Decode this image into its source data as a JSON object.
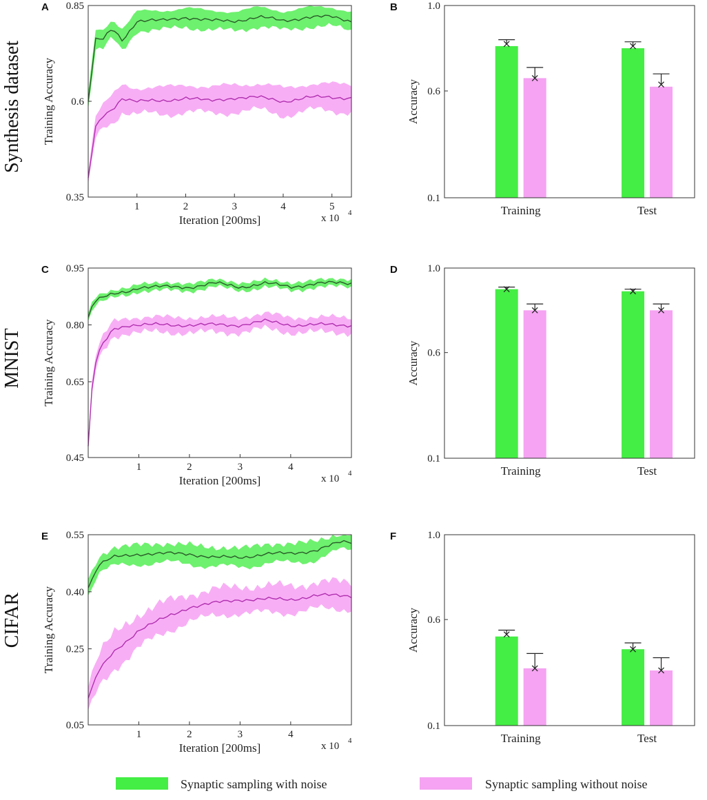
{
  "figure": {
    "row_labels": [
      "Synthesis dataset",
      "MNIST",
      "CIFAR"
    ],
    "legend": [
      {
        "label": "Synaptic sampling with noise",
        "color": "#44ee44"
      },
      {
        "label": "Synaptic sampling without noise",
        "color": "#f5a3f2"
      }
    ]
  },
  "colors": {
    "noise_band": "#55ee55",
    "noise_line": "#2a5a2a",
    "nonoise_band": "#f7a0f3",
    "nonoise_line": "#b030b0",
    "bar_noise": "#44ee44",
    "bar_nonoise": "#f5a3f2"
  },
  "chart_data": [
    {
      "panel": "A",
      "type": "line",
      "xlabel": "Iteration [200ms]",
      "ylabel": "Training Accuracy",
      "x_multiplier": "x 10",
      "x_exponent": "4",
      "xlim": [
        0,
        5.4
      ],
      "ylim": [
        0.35,
        0.85
      ],
      "xticks": [
        1,
        2,
        3,
        4,
        5
      ],
      "yticks": [
        0.35,
        0.6,
        0.85
      ],
      "ytick_labels": [
        "0.35",
        "0.6",
        "0.85"
      ],
      "series": [
        {
          "name": "Synaptic sampling with noise",
          "x": [
            0,
            0.15,
            0.3,
            0.5,
            0.7,
            1.0,
            1.5,
            2.0,
            2.5,
            3.0,
            3.5,
            4.0,
            4.5,
            5.0,
            5.4
          ],
          "mean": [
            0.6,
            0.76,
            0.76,
            0.79,
            0.76,
            0.81,
            0.81,
            0.82,
            0.81,
            0.81,
            0.82,
            0.81,
            0.82,
            0.82,
            0.81
          ],
          "spread": [
            0.02,
            0.025,
            0.025,
            0.025,
            0.03,
            0.025,
            0.025,
            0.025,
            0.025,
            0.025,
            0.025,
            0.025,
            0.025,
            0.025,
            0.025
          ]
        },
        {
          "name": "Synaptic sampling without noise",
          "x": [
            0,
            0.15,
            0.3,
            0.5,
            0.7,
            1.0,
            1.5,
            2.0,
            2.5,
            3.0,
            3.5,
            4.0,
            4.5,
            5.0,
            5.4
          ],
          "mean": [
            0.4,
            0.53,
            0.56,
            0.58,
            0.61,
            0.6,
            0.6,
            0.61,
            0.6,
            0.61,
            0.61,
            0.6,
            0.61,
            0.61,
            0.61
          ],
          "spread": [
            0.02,
            0.03,
            0.03,
            0.035,
            0.035,
            0.035,
            0.035,
            0.035,
            0.035,
            0.035,
            0.035,
            0.035,
            0.035,
            0.035,
            0.035
          ]
        }
      ]
    },
    {
      "panel": "B",
      "type": "bar",
      "ylabel": "Accuracy",
      "ylim": [
        0.1,
        1.0
      ],
      "yticks": [
        0.1,
        0.6,
        1.0
      ],
      "ytick_labels": [
        "0.1",
        "0.6",
        "1.0"
      ],
      "categories": [
        "Training",
        "Test"
      ],
      "series": [
        {
          "name": "Synaptic sampling with noise",
          "values": [
            0.81,
            0.8
          ],
          "markers": [
            0.82,
            0.81
          ],
          "err_top": [
            0.84,
            0.83
          ]
        },
        {
          "name": "Synaptic sampling without noise",
          "values": [
            0.66,
            0.62
          ],
          "markers": [
            0.66,
            0.63
          ],
          "err_top": [
            0.71,
            0.68
          ]
        }
      ]
    },
    {
      "panel": "C",
      "type": "line",
      "xlabel": "Iteration [200ms]",
      "ylabel": "Training Accuracy",
      "x_multiplier": "x 10",
      "x_exponent": "4",
      "xlim": [
        0,
        5.2
      ],
      "ylim": [
        0.45,
        0.95
      ],
      "xticks": [
        1,
        2,
        3,
        4
      ],
      "yticks": [
        0.45,
        0.65,
        0.8,
        0.95
      ],
      "ytick_labels": [
        "0.45",
        "0.65",
        "0.80",
        "0.95"
      ],
      "series": [
        {
          "name": "Synaptic sampling with noise",
          "x": [
            0,
            0.1,
            0.25,
            0.5,
            0.8,
            1.0,
            1.5,
            2.0,
            2.5,
            3.0,
            3.5,
            4.0,
            4.5,
            5.0,
            5.2
          ],
          "mean": [
            0.82,
            0.86,
            0.87,
            0.88,
            0.89,
            0.9,
            0.9,
            0.9,
            0.91,
            0.9,
            0.91,
            0.9,
            0.91,
            0.91,
            0.91
          ],
          "spread": [
            0.01,
            0.01,
            0.01,
            0.01,
            0.01,
            0.01,
            0.01,
            0.01,
            0.01,
            0.01,
            0.01,
            0.01,
            0.01,
            0.01,
            0.01
          ]
        },
        {
          "name": "Synaptic sampling without noise",
          "x": [
            0,
            0.1,
            0.25,
            0.5,
            0.8,
            1.0,
            1.5,
            2.0,
            2.5,
            3.0,
            3.5,
            4.0,
            4.5,
            5.0,
            5.2
          ],
          "mean": [
            0.48,
            0.68,
            0.74,
            0.79,
            0.8,
            0.8,
            0.8,
            0.8,
            0.8,
            0.8,
            0.81,
            0.8,
            0.8,
            0.8,
            0.8
          ],
          "spread": [
            0.02,
            0.02,
            0.02,
            0.02,
            0.02,
            0.02,
            0.02,
            0.02,
            0.02,
            0.02,
            0.02,
            0.02,
            0.02,
            0.02,
            0.02
          ]
        }
      ]
    },
    {
      "panel": "D",
      "type": "bar",
      "ylabel": "Accuracy",
      "ylim": [
        0.1,
        1.0
      ],
      "yticks": [
        0.1,
        0.6,
        1.0
      ],
      "ytick_labels": [
        "0.1",
        "0.6",
        "1.0"
      ],
      "categories": [
        "Training",
        "Test"
      ],
      "series": [
        {
          "name": "Synaptic sampling with noise",
          "values": [
            0.9,
            0.89
          ],
          "markers": [
            0.9,
            0.89
          ],
          "err_top": [
            0.91,
            0.9
          ]
        },
        {
          "name": "Synaptic sampling without noise",
          "values": [
            0.8,
            0.8
          ],
          "markers": [
            0.8,
            0.8
          ],
          "err_top": [
            0.83,
            0.83
          ]
        }
      ]
    },
    {
      "panel": "E",
      "type": "line",
      "xlabel": "Iteration [200ms]",
      "ylabel": "Training Accuracy",
      "x_multiplier": "x 10",
      "x_exponent": "4",
      "xlim": [
        0,
        5.2
      ],
      "ylim": [
        0.05,
        0.55
      ],
      "xticks": [
        1,
        2,
        3,
        4
      ],
      "yticks": [
        0.05,
        0.25,
        0.4,
        0.55
      ],
      "ytick_labels": [
        "0.05",
        "0.25",
        "0.40",
        "0.55"
      ],
      "series": [
        {
          "name": "Synaptic sampling with noise",
          "x": [
            0,
            0.2,
            0.5,
            1.0,
            1.5,
            2.0,
            2.5,
            3.0,
            3.5,
            4.0,
            4.5,
            5.0,
            5.2
          ],
          "mean": [
            0.41,
            0.47,
            0.49,
            0.5,
            0.5,
            0.5,
            0.49,
            0.49,
            0.5,
            0.5,
            0.51,
            0.53,
            0.53
          ],
          "spread": [
            0.02,
            0.02,
            0.025,
            0.025,
            0.025,
            0.025,
            0.025,
            0.025,
            0.025,
            0.025,
            0.025,
            0.02,
            0.02
          ]
        },
        {
          "name": "Synaptic sampling without noise",
          "x": [
            0,
            0.2,
            0.5,
            1.0,
            1.5,
            2.0,
            2.5,
            3.0,
            3.5,
            4.0,
            4.5,
            5.0,
            5.2
          ],
          "mean": [
            0.12,
            0.19,
            0.24,
            0.3,
            0.33,
            0.36,
            0.37,
            0.38,
            0.38,
            0.38,
            0.39,
            0.39,
            0.39
          ],
          "spread": [
            0.04,
            0.045,
            0.045,
            0.045,
            0.04,
            0.035,
            0.035,
            0.035,
            0.035,
            0.035,
            0.035,
            0.035,
            0.035
          ]
        }
      ]
    },
    {
      "panel": "F",
      "type": "bar",
      "ylabel": "Accuracy",
      "ylim": [
        0.1,
        1.0
      ],
      "yticks": [
        0.1,
        0.6,
        1.0
      ],
      "ytick_labels": [
        "0.1",
        "0.6",
        "1.0"
      ],
      "categories": [
        "Training",
        "Test"
      ],
      "series": [
        {
          "name": "Synaptic sampling with noise",
          "values": [
            0.52,
            0.46
          ],
          "markers": [
            0.53,
            0.46
          ],
          "err_top": [
            0.55,
            0.49
          ]
        },
        {
          "name": "Synaptic sampling without noise",
          "values": [
            0.37,
            0.36
          ],
          "markers": [
            0.37,
            0.36
          ],
          "err_top": [
            0.44,
            0.42
          ]
        }
      ]
    }
  ]
}
